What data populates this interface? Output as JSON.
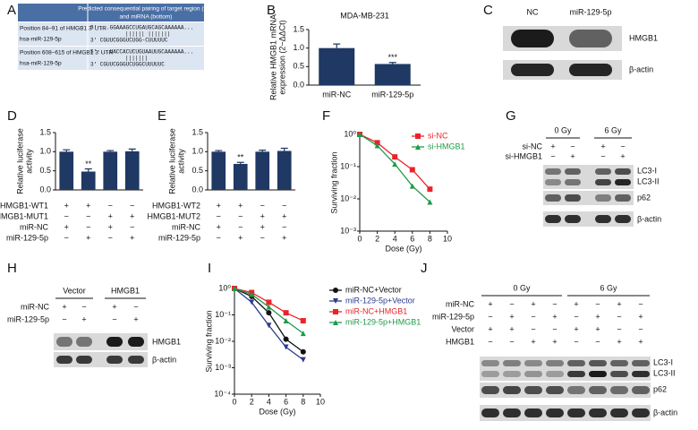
{
  "panel_labels": [
    "A",
    "B",
    "C",
    "D",
    "E",
    "F",
    "G",
    "H",
    "I",
    "J"
  ],
  "table": {
    "header": [
      "Predicted consequential pairing of target region (top)",
      "and miRNA (bottom)"
    ],
    "rows": [
      {
        "site": "Position 84–91 of HMGB1 3′ UTR",
        "mirna": "hsa-miR-129-5p",
        "target": "5′  ...GGAAAGCCUGAUGCAGCAAAAAA...",
        "pairing": "||||||    |||||||",
        "mirna_seq": "3′         CGUUCGGGUCUGG-CUUUUUC"
      },
      {
        "site": "Position 608–615 of HMGB1 3′ UTR",
        "mirna": "hsa-miR-129-5p",
        "target": "5′  ...UACCACUCUGUAAUUGCAAAAAA...",
        "pairing": "|||||||",
        "mirna_seq": "3′         CGUUCGGGUCUGGCUUUUUC"
      }
    ]
  },
  "blot_c": {
    "lanes": [
      "NC",
      "miR-129-5p"
    ],
    "proteins": [
      "HMGB1",
      "β-actin"
    ]
  },
  "blot_g": {
    "groups": [
      "0 Gy",
      "6 Gy"
    ],
    "conditions": [
      {
        "name": "si-NC",
        "signs": [
          "+",
          "−",
          "+",
          "−"
        ]
      },
      {
        "name": "si-HMGB1",
        "signs": [
          "−",
          "+",
          "−",
          "+"
        ]
      }
    ],
    "proteins": [
      "LC3-I",
      "LC3-II",
      "p62",
      "β-actin"
    ]
  },
  "blot_h": {
    "groups": [
      "Vector",
      "HMGB1"
    ],
    "conditions": [
      {
        "name": "miR-NC",
        "signs": [
          "+",
          "−",
          "+",
          "−"
        ]
      },
      {
        "name": "miR-129-5p",
        "signs": [
          "−",
          "+",
          "−",
          "+"
        ]
      }
    ],
    "proteins": [
      "HMGB1",
      "β-actin"
    ]
  },
  "blot_j": {
    "groups": [
      "0 Gy",
      "6 Gy"
    ],
    "conditions": [
      {
        "name": "miR-NC",
        "signs": [
          "+",
          "−",
          "+",
          "−",
          "+",
          "−",
          "+",
          "−"
        ]
      },
      {
        "name": "miR-129-5p",
        "signs": [
          "−",
          "+",
          "−",
          "+",
          "−",
          "+",
          "−",
          "+"
        ]
      },
      {
        "name": "Vector",
        "signs": [
          "+",
          "+",
          "−",
          "−",
          "+",
          "+",
          "−",
          "−"
        ]
      },
      {
        "name": "HMGB1",
        "signs": [
          "−",
          "−",
          "+",
          "+",
          "−",
          "−",
          "+",
          "+"
        ]
      }
    ],
    "proteins": [
      "LC3-I",
      "LC3-II",
      "p62",
      "β-actin"
    ]
  },
  "chart_data": [
    {
      "type": "bar",
      "title": "MDA-MB-231",
      "ylabel": [
        "Relative HMGB1 mRNA",
        "expression (2−ΔΔCt)"
      ],
      "categories": [
        "miR-NC",
        "miR-129-5p"
      ],
      "values": [
        1.0,
        0.57
      ],
      "errors": [
        0.11,
        0.04
      ],
      "significance": [
        null,
        "***"
      ],
      "color": "#1f3864",
      "ylim": [
        0,
        1.5
      ],
      "yticks": [
        {
          "value": 0,
          "label": "0.0"
        },
        {
          "value": 0.5,
          "label": "0.5"
        },
        {
          "value": 1,
          "label": "1.0"
        },
        {
          "value": 1.5,
          "label": "1.5"
        }
      ]
    },
    {
      "type": "bar",
      "ylabel": [
        "Relative luciferase",
        "activity"
      ],
      "values": [
        1.0,
        0.48,
        1.0,
        1.01
      ],
      "errors": [
        0.05,
        0.07,
        0.03,
        0.06
      ],
      "significance": [
        null,
        "**",
        null,
        null
      ],
      "conditions": [
        {
          "name": "HMGB1-WT1",
          "signs": [
            "+",
            "+",
            "−",
            "−"
          ]
        },
        {
          "name": "HMGB1-MUT1",
          "signs": [
            "−",
            "−",
            "+",
            "+"
          ]
        },
        {
          "name": "miR-NC",
          "signs": [
            "+",
            "−",
            "+",
            "−"
          ]
        },
        {
          "name": "miR-129-5p",
          "signs": [
            "−",
            "+",
            "−",
            "+"
          ]
        }
      ],
      "color": "#1f3864",
      "ylim": [
        0,
        1.5
      ],
      "yticks": [
        {
          "value": 0,
          "label": "0.0"
        },
        {
          "value": 0.5,
          "label": "0.5"
        },
        {
          "value": 1,
          "label": "1.0"
        },
        {
          "value": 1.5,
          "label": "1.5"
        }
      ]
    },
    {
      "type": "bar",
      "ylabel": [
        "Relative luciferase",
        "activity"
      ],
      "values": [
        1.0,
        0.68,
        1.0,
        1.02
      ],
      "errors": [
        0.03,
        0.04,
        0.04,
        0.07
      ],
      "significance": [
        null,
        "**",
        null,
        null
      ],
      "conditions": [
        {
          "name": "HMGB1-WT2",
          "signs": [
            "+",
            "+",
            "−",
            "−"
          ]
        },
        {
          "name": "HMGB1-MUT2",
          "signs": [
            "−",
            "−",
            "+",
            "+"
          ]
        },
        {
          "name": "miR-NC",
          "signs": [
            "+",
            "−",
            "+",
            "−"
          ]
        },
        {
          "name": "miR-129-5p",
          "signs": [
            "−",
            "+",
            "−",
            "+"
          ]
        }
      ],
      "color": "#1f3864",
      "ylim": [
        0,
        1.5
      ],
      "yticks": [
        {
          "value": 0,
          "label": "0.0"
        },
        {
          "value": 0.5,
          "label": "0.5"
        },
        {
          "value": 1,
          "label": "1.0"
        },
        {
          "value": 1.5,
          "label": "1.5"
        }
      ]
    },
    {
      "type": "line",
      "xlabel": "Dose (Gy)",
      "ylabel": "Surviving fraction",
      "log_y": true,
      "legend": "upper right",
      "x": [
        0,
        2,
        4,
        6,
        8
      ],
      "xlim": [
        0,
        10
      ],
      "xticks": [
        0,
        2,
        4,
        6,
        8,
        10
      ],
      "ylim": [
        0.001,
        1
      ],
      "yticks": [
        {
          "value": 0.001,
          "label": "10⁻³"
        },
        {
          "value": 0.01,
          "label": "10⁻²"
        },
        {
          "value": 0.1,
          "label": "10⁻¹"
        },
        {
          "value": 1,
          "label": "10⁰"
        }
      ],
      "series": [
        {
          "name": "si-NC",
          "color": "#e8242a",
          "marker": "square",
          "values": [
            1,
            0.55,
            0.2,
            0.08,
            0.02
          ]
        },
        {
          "name": "si-HMGB1",
          "color": "#1f9a48",
          "marker": "triangle",
          "values": [
            1,
            0.45,
            0.12,
            0.025,
            0.008
          ]
        }
      ]
    },
    {
      "type": "line",
      "xlabel": "Dose (Gy)",
      "ylabel": "Surviving fraction",
      "log_y": true,
      "legend": "right",
      "x": [
        0,
        2,
        4,
        6,
        8
      ],
      "xlim": [
        0,
        10
      ],
      "xticks": [
        0,
        2,
        4,
        6,
        8,
        10
      ],
      "ylim": [
        0.0001,
        1
      ],
      "yticks": [
        {
          "value": 0.0001,
          "label": "10⁻⁴"
        },
        {
          "value": 0.001,
          "label": "10⁻³"
        },
        {
          "value": 0.01,
          "label": "10⁻²"
        },
        {
          "value": 0.1,
          "label": "10⁻¹"
        },
        {
          "value": 1,
          "label": "10⁰"
        }
      ],
      "series": [
        {
          "name": "miR-NC+Vector",
          "color": "#111111",
          "marker": "circle",
          "values": [
            1,
            0.5,
            0.12,
            0.012,
            0.004
          ]
        },
        {
          "name": "miR-129-5p+Vector",
          "color": "#2b3a8c",
          "marker": "triangle-down",
          "values": [
            1,
            0.3,
            0.04,
            0.006,
            0.002
          ]
        },
        {
          "name": "miR-NC+HMGB1",
          "color": "#e8242a",
          "marker": "square",
          "values": [
            1,
            0.7,
            0.3,
            0.12,
            0.06
          ]
        },
        {
          "name": "miR-129-5p+HMGB1",
          "color": "#1f9a48",
          "marker": "triangle",
          "values": [
            1,
            0.6,
            0.2,
            0.06,
            0.02
          ]
        }
      ]
    }
  ]
}
